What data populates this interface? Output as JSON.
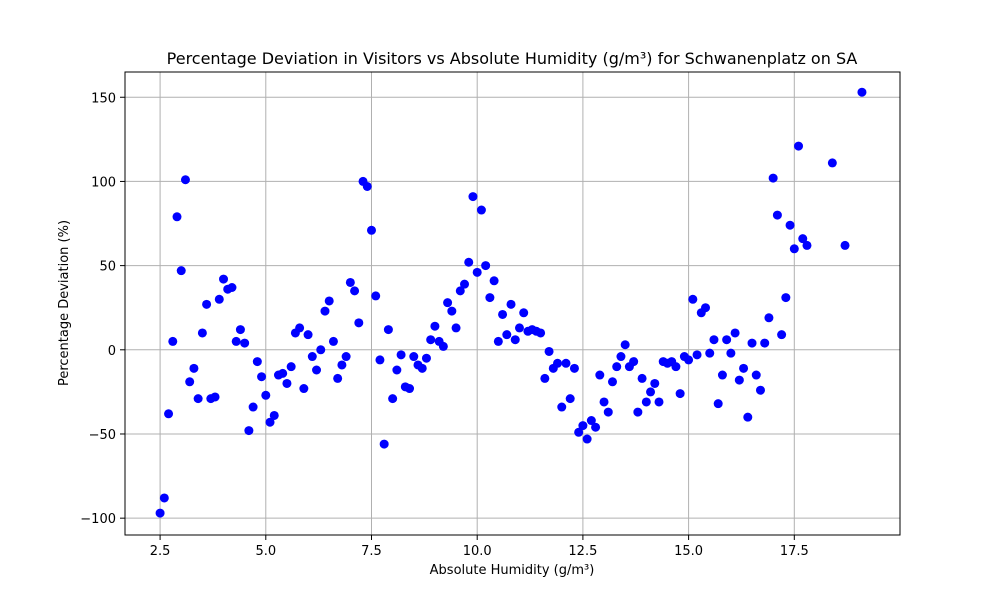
{
  "chart_data": {
    "type": "scatter",
    "title": "Percentage Deviation in Visitors vs Absolute Humidity (g/m³) for Schwanenplatz on SA",
    "xlabel": "Absolute Humidity (g/m³)",
    "ylabel": "Percentage Deviation (%)",
    "xlim": [
      1.67,
      20.0
    ],
    "ylim": [
      -110,
      165
    ],
    "x_ticks": [
      2.5,
      5.0,
      7.5,
      10.0,
      12.5,
      15.0,
      17.5
    ],
    "x_tick_labels": [
      "2.5",
      "5.0",
      "7.5",
      "10.0",
      "12.5",
      "15.0",
      "17.5"
    ],
    "y_ticks": [
      -100,
      -50,
      0,
      50,
      100,
      150
    ],
    "y_tick_labels": [
      "−100",
      "−50",
      "0",
      "50",
      "100",
      "150"
    ],
    "grid": true,
    "marker_color": "#0000ff",
    "points": [
      [
        2.5,
        -97
      ],
      [
        2.6,
        -88
      ],
      [
        2.7,
        -38
      ],
      [
        2.8,
        5
      ],
      [
        2.9,
        79
      ],
      [
        3.0,
        47
      ],
      [
        3.1,
        101
      ],
      [
        3.2,
        -19
      ],
      [
        3.3,
        -11
      ],
      [
        3.4,
        -29
      ],
      [
        3.5,
        10
      ],
      [
        3.6,
        27
      ],
      [
        3.7,
        -29
      ],
      [
        3.8,
        -28
      ],
      [
        3.9,
        30
      ],
      [
        4.0,
        42
      ],
      [
        4.1,
        36
      ],
      [
        4.2,
        37
      ],
      [
        4.3,
        5
      ],
      [
        4.4,
        12
      ],
      [
        4.5,
        4
      ],
      [
        4.6,
        -48
      ],
      [
        4.7,
        -34
      ],
      [
        4.8,
        -7
      ],
      [
        4.9,
        -16
      ],
      [
        5.0,
        -27
      ],
      [
        5.1,
        -43
      ],
      [
        5.2,
        -39
      ],
      [
        5.3,
        -15
      ],
      [
        5.4,
        -14
      ],
      [
        5.5,
        -20
      ],
      [
        5.6,
        -10
      ],
      [
        5.7,
        10
      ],
      [
        5.8,
        13
      ],
      [
        5.9,
        -23
      ],
      [
        6.0,
        9
      ],
      [
        6.1,
        -4
      ],
      [
        6.2,
        -12
      ],
      [
        6.3,
        0
      ],
      [
        6.4,
        23
      ],
      [
        6.5,
        29
      ],
      [
        6.6,
        5
      ],
      [
        6.7,
        -17
      ],
      [
        6.8,
        -9
      ],
      [
        6.9,
        -4
      ],
      [
        7.0,
        40
      ],
      [
        7.1,
        35
      ],
      [
        7.2,
        16
      ],
      [
        7.3,
        100
      ],
      [
        7.4,
        97
      ],
      [
        7.5,
        71
      ],
      [
        7.6,
        32
      ],
      [
        7.7,
        -6
      ],
      [
        7.8,
        -56
      ],
      [
        7.9,
        12
      ],
      [
        8.0,
        -29
      ],
      [
        8.1,
        -12
      ],
      [
        8.2,
        -3
      ],
      [
        8.3,
        -22
      ],
      [
        8.4,
        -23
      ],
      [
        8.5,
        -4
      ],
      [
        8.6,
        -9
      ],
      [
        8.7,
        -11
      ],
      [
        8.8,
        -5
      ],
      [
        8.9,
        6
      ],
      [
        9.0,
        14
      ],
      [
        9.1,
        5
      ],
      [
        9.2,
        2
      ],
      [
        9.3,
        28
      ],
      [
        9.4,
        23
      ],
      [
        9.5,
        13
      ],
      [
        9.6,
        35
      ],
      [
        9.7,
        39
      ],
      [
        9.8,
        52
      ],
      [
        9.9,
        91
      ],
      [
        10.0,
        46
      ],
      [
        10.1,
        83
      ],
      [
        10.2,
        50
      ],
      [
        10.3,
        31
      ],
      [
        10.4,
        41
      ],
      [
        10.5,
        5
      ],
      [
        10.6,
        21
      ],
      [
        10.7,
        9
      ],
      [
        10.8,
        27
      ],
      [
        10.9,
        6
      ],
      [
        11.0,
        13
      ],
      [
        11.1,
        22
      ],
      [
        11.2,
        11
      ],
      [
        11.3,
        12
      ],
      [
        11.4,
        11
      ],
      [
        11.5,
        10
      ],
      [
        11.6,
        -17
      ],
      [
        11.7,
        -1
      ],
      [
        11.8,
        -11
      ],
      [
        11.9,
        -8
      ],
      [
        12.0,
        -34
      ],
      [
        12.1,
        -8
      ],
      [
        12.2,
        -29
      ],
      [
        12.3,
        -11
      ],
      [
        12.4,
        -49
      ],
      [
        12.5,
        -45
      ],
      [
        12.6,
        -53
      ],
      [
        12.7,
        -42
      ],
      [
        12.8,
        -46
      ],
      [
        12.9,
        -15
      ],
      [
        13.0,
        -31
      ],
      [
        13.1,
        -37
      ],
      [
        13.2,
        -19
      ],
      [
        13.3,
        -10
      ],
      [
        13.4,
        -4
      ],
      [
        13.5,
        3
      ],
      [
        13.6,
        -10
      ],
      [
        13.7,
        -7
      ],
      [
        13.8,
        -37
      ],
      [
        13.9,
        -17
      ],
      [
        14.0,
        -31
      ],
      [
        14.1,
        -25
      ],
      [
        14.2,
        -20
      ],
      [
        14.3,
        -31
      ],
      [
        14.4,
        -7
      ],
      [
        14.5,
        -8
      ],
      [
        14.6,
        -7
      ],
      [
        14.7,
        -10
      ],
      [
        14.8,
        -26
      ],
      [
        14.9,
        -4
      ],
      [
        15.0,
        -6
      ],
      [
        15.1,
        30
      ],
      [
        15.2,
        -3
      ],
      [
        15.3,
        22
      ],
      [
        15.4,
        25
      ],
      [
        15.5,
        -2
      ],
      [
        15.6,
        6
      ],
      [
        15.7,
        -32
      ],
      [
        15.8,
        -15
      ],
      [
        15.9,
        6
      ],
      [
        16.0,
        -2
      ],
      [
        16.1,
        10
      ],
      [
        16.2,
        -18
      ],
      [
        16.3,
        -11
      ],
      [
        16.4,
        -40
      ],
      [
        16.5,
        4
      ],
      [
        16.6,
        -15
      ],
      [
        16.7,
        -24
      ],
      [
        16.8,
        4
      ],
      [
        16.9,
        19
      ],
      [
        17.0,
        102
      ],
      [
        17.1,
        80
      ],
      [
        17.2,
        9
      ],
      [
        17.3,
        31
      ],
      [
        17.4,
        74
      ],
      [
        17.5,
        60
      ],
      [
        17.6,
        121
      ],
      [
        17.7,
        66
      ],
      [
        17.8,
        62
      ],
      [
        18.4,
        111
      ],
      [
        18.7,
        62
      ],
      [
        19.1,
        153
      ]
    ]
  }
}
